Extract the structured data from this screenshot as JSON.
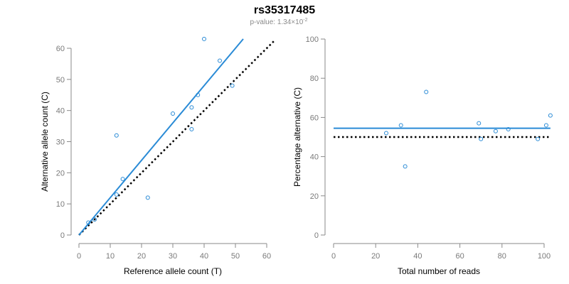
{
  "header": {
    "title": "rs35317485",
    "pvalue_prefix": "p-value: 1.34×10",
    "pvalue_exponent": "-2"
  },
  "colors": {
    "points": "#2a8bd6",
    "fit_line": "#2a8bd6",
    "reference_line": "#000000",
    "axis": "#8a8a8a"
  },
  "chart_data": [
    {
      "type": "scatter",
      "xlabel": "Reference allele count (T)",
      "ylabel": "Alternative allele count (C)",
      "xlim": [
        0,
        60
      ],
      "ylim": [
        0,
        60
      ],
      "xticks": [
        0,
        10,
        20,
        30,
        40,
        50,
        60
      ],
      "yticks": [
        0,
        10,
        20,
        30,
        40,
        50,
        60
      ],
      "points": [
        {
          "x": 3,
          "y": 4
        },
        {
          "x": 5,
          "y": 5
        },
        {
          "x": 12,
          "y": 32
        },
        {
          "x": 12,
          "y": 13
        },
        {
          "x": 14,
          "y": 18
        },
        {
          "x": 22,
          "y": 12
        },
        {
          "x": 30,
          "y": 39
        },
        {
          "x": 36,
          "y": 41
        },
        {
          "x": 36,
          "y": 34
        },
        {
          "x": 38,
          "y": 45
        },
        {
          "x": 40,
          "y": 63
        },
        {
          "x": 45,
          "y": 56
        },
        {
          "x": 49,
          "y": 48
        }
      ],
      "fit_line": {
        "x": [
          0,
          52.5
        ],
        "y": [
          0,
          63
        ]
      },
      "reference_line": {
        "x": [
          0,
          62.5
        ],
        "y": [
          0,
          62.5
        ]
      }
    },
    {
      "type": "scatter",
      "xlabel": "Total number of reads",
      "ylabel": "Percentage alternative (C)",
      "xlim": [
        0,
        100
      ],
      "ylim": [
        0,
        100
      ],
      "xticks": [
        0,
        20,
        40,
        60,
        80,
        100
      ],
      "yticks": [
        0,
        20,
        40,
        60,
        80,
        100
      ],
      "points": [
        {
          "x": 25,
          "y": 52
        },
        {
          "x": 32,
          "y": 56
        },
        {
          "x": 34,
          "y": 35
        },
        {
          "x": 44,
          "y": 73
        },
        {
          "x": 69,
          "y": 57
        },
        {
          "x": 70,
          "y": 49
        },
        {
          "x": 77,
          "y": 53
        },
        {
          "x": 83,
          "y": 54
        },
        {
          "x": 97,
          "y": 49
        },
        {
          "x": 101,
          "y": 56
        },
        {
          "x": 103,
          "y": 61
        }
      ],
      "fit_line": {
        "x": [
          0,
          103
        ],
        "y": [
          54.5,
          54.5
        ]
      },
      "reference_line": {
        "x": [
          0,
          103
        ],
        "y": [
          50,
          50
        ]
      }
    }
  ]
}
